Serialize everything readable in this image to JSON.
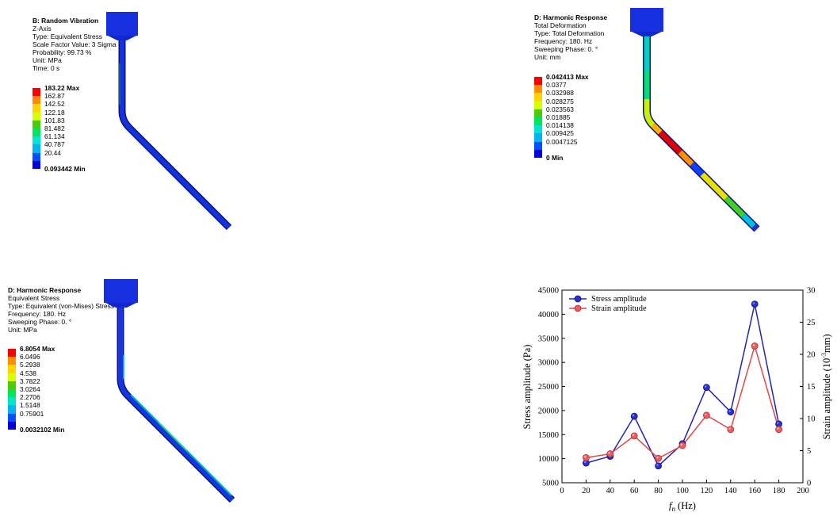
{
  "legend_colors": [
    "#ff0000",
    "#ff8c00",
    "#ffd400",
    "#d7ff00",
    "#4ccc00",
    "#00e55c",
    "#00e6cc",
    "#00b4f0",
    "#0050ff",
    "#0000dc"
  ],
  "model_colors": {
    "pipe_base": "#1026d0",
    "pipe_dark": "#0a1480",
    "clamp": "#1630e0"
  },
  "panels": {
    "random_vibration": {
      "title": "B: Random Vibration",
      "lines": [
        "Z-Axis",
        "Type: Equivalent Stress",
        "Scale Factor Value: 3 Sigma",
        "Probability: 99.73 %",
        "Unit: MPa",
        "Time: 0 s"
      ],
      "legend": [
        "183.22 Max",
        "162.87",
        "142.52",
        "122.18",
        "101.83",
        "81.482",
        "61.134",
        "40.787",
        "20.44",
        "0.093442 Min"
      ]
    },
    "harmonic_deformation": {
      "title": "D: Harmonic Response",
      "lines": [
        "Total Deformation",
        "Type: Total Deformation",
        "Frequency: 180. Hz",
        "Sweeping Phase: 0. °",
        "Unit: mm"
      ],
      "legend": [
        "0.042413 Max",
        "0.0377",
        "0.032988",
        "0.028275",
        "0.023563",
        "0.01885",
        "0.014138",
        "0.009425",
        "0.0047125",
        "0 Min"
      ]
    },
    "harmonic_stress": {
      "title": "D: Harmonic Response",
      "lines": [
        "Equivalent Stress",
        "Type: Equivalent (von-Mises) Stress",
        "Frequency: 180. Hz",
        "Sweeping Phase: 0. °",
        "Unit: MPa"
      ],
      "legend": [
        "6.8054 Max",
        "6.0496",
        "5.2938",
        "4.538",
        "3.7822",
        "3.0264",
        "2.2706",
        "1.5148",
        "0.75901",
        "0.0032102 Min"
      ]
    }
  },
  "chart_data": {
    "type": "line",
    "x": [
      20,
      40,
      60,
      80,
      100,
      120,
      140,
      160,
      180
    ],
    "xlabel": "f_n (Hz)",
    "xlabel_main": "f",
    "xlabel_sub": "n",
    "xlabel_unit": "(Hz)",
    "xlim": [
      0,
      200
    ],
    "xticks": [
      "0",
      "20",
      "40",
      "60",
      "80",
      "100",
      "120",
      "140",
      "160",
      "180",
      "200"
    ],
    "ylabel": "Stress amplitude (Pa)",
    "ylim": [
      5000,
      45000
    ],
    "yticks": [
      "5000",
      "10000",
      "15000",
      "20000",
      "25000",
      "30000",
      "35000",
      "40000",
      "45000"
    ],
    "y2label": "Strain amplitude (10⁻³mm)",
    "y2label_main": "Strain amplitude (10",
    "y2label_sup": "-3",
    "y2label_end": "mm)",
    "y2lim": [
      0,
      30
    ],
    "y2ticks": [
      "0",
      "5",
      "10",
      "15",
      "20",
      "25",
      "30"
    ],
    "legend_position": "top-left",
    "series": [
      {
        "name": "Stress amplitude",
        "axis": "left",
        "color": "#1f23b8",
        "values": [
          9100,
          10500,
          18800,
          8500,
          13100,
          24800,
          19700,
          42100,
          17200
        ]
      },
      {
        "name": "Strain amplitude",
        "axis": "right",
        "color": "#e2474a",
        "values": [
          3.9,
          4.5,
          7.3,
          3.8,
          5.8,
          10.5,
          8.3,
          21.3,
          8.3
        ]
      }
    ]
  }
}
